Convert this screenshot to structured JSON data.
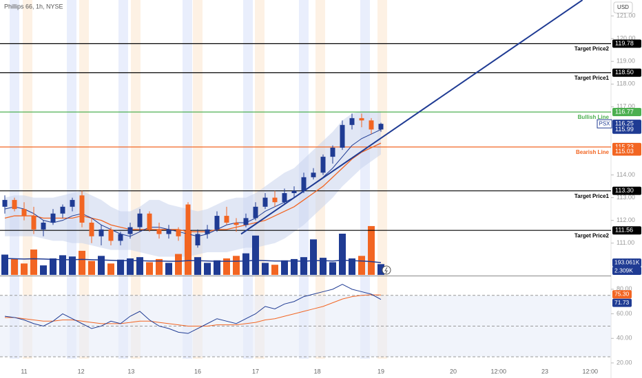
{
  "chart_data": {
    "type": "candlestick",
    "title": "Phillips 66, 1h, NYSE",
    "currency": "USD",
    "symbol": "PSX",
    "up_color": "#1f3b93",
    "down_color": "#f26522",
    "open": [
      112.6,
      112.9,
      112.5,
      112.2,
      111.6,
      111.9,
      112.3,
      112.6,
      113.1,
      111.9,
      111.3,
      111.6,
      111.1,
      111.4,
      111.7,
      112.3,
      111.6,
      111.4,
      111.6,
      112.7,
      110.9,
      111.4,
      111.6,
      112.2,
      111.9,
      111.8,
      112.1,
      112.6,
      113.0,
      112.8,
      113.2,
      113.3,
      113.9,
      114.1,
      114.8,
      115.2,
      116.2,
      116.5,
      116.4,
      116.0
    ],
    "high": [
      113.1,
      113.0,
      112.8,
      112.6,
      112.0,
      112.5,
      112.7,
      113.0,
      113.3,
      112.1,
      111.8,
      111.7,
      111.5,
      111.9,
      112.5,
      112.4,
      111.9,
      111.8,
      111.7,
      112.8,
      111.6,
      111.8,
      112.4,
      112.6,
      112.1,
      112.3,
      112.8,
      113.2,
      113.3,
      113.4,
      113.5,
      114.1,
      114.3,
      114.9,
      115.3,
      116.4,
      116.7,
      116.7,
      116.5,
      116.3
    ],
    "low": [
      112.3,
      112.4,
      112.0,
      111.4,
      111.3,
      111.8,
      112.1,
      112.4,
      111.7,
      111.0,
      110.9,
      110.9,
      110.9,
      111.2,
      111.5,
      111.5,
      111.2,
      111.2,
      111.1,
      110.5,
      110.8,
      111.2,
      111.5,
      111.8,
      111.5,
      111.7,
      112.0,
      112.5,
      112.6,
      112.7,
      113.0,
      113.2,
      113.8,
      114.0,
      114.5,
      115.1,
      116.0,
      116.1,
      115.8,
      115.9
    ],
    "close": [
      112.9,
      112.5,
      112.2,
      111.6,
      111.9,
      112.3,
      112.6,
      112.9,
      111.9,
      111.3,
      111.6,
      111.1,
      111.4,
      111.7,
      112.3,
      111.6,
      111.4,
      111.6,
      111.3,
      110.9,
      111.4,
      111.6,
      112.2,
      111.9,
      111.8,
      112.1,
      112.6,
      113.0,
      112.8,
      113.2,
      113.3,
      113.9,
      114.1,
      114.8,
      115.2,
      116.2,
      116.5,
      116.4,
      116.0,
      116.25
    ],
    "ma_fast": [
      112.5,
      112.6,
      112.5,
      112.3,
      112.0,
      111.9,
      112.0,
      112.2,
      112.3,
      112.1,
      111.8,
      111.6,
      111.4,
      111.3,
      111.5,
      111.7,
      111.7,
      111.6,
      111.5,
      111.4,
      111.3,
      111.4,
      111.6,
      111.8,
      111.9,
      111.9,
      112.1,
      112.4,
      112.6,
      112.8,
      113.0,
      113.3,
      113.6,
      113.9,
      114.3,
      114.8,
      115.3,
      115.6,
      115.8,
      116.0
    ],
    "ma_slow": [
      112.1,
      112.2,
      112.2,
      112.2,
      112.1,
      112.1,
      112.1,
      112.1,
      112.2,
      112.1,
      112.0,
      111.8,
      111.7,
      111.6,
      111.6,
      111.6,
      111.6,
      111.6,
      111.6,
      111.5,
      111.5,
      111.5,
      111.6,
      111.6,
      111.7,
      111.8,
      111.9,
      112.0,
      112.2,
      112.4,
      112.6,
      112.9,
      113.2,
      113.5,
      113.9,
      114.3,
      114.7,
      115.0,
      115.2,
      115.4
    ],
    "band_upper": [
      113.0,
      113.1,
      113.1,
      113.0,
      113.0,
      113.0,
      113.1,
      113.2,
      113.3,
      113.1,
      112.9,
      112.6,
      112.4,
      112.4,
      112.6,
      112.9,
      112.9,
      112.7,
      112.6,
      112.5,
      112.4,
      112.5,
      112.7,
      112.9,
      113.0,
      113.0,
      113.2,
      113.5,
      113.8,
      114.1,
      114.3,
      114.7,
      115.1,
      115.5,
      115.9,
      116.4,
      116.7,
      116.8,
      116.8,
      116.8
    ],
    "band_lower": [
      111.3,
      111.3,
      111.3,
      111.3,
      111.2,
      111.1,
      111.1,
      111.0,
      111.0,
      110.9,
      110.8,
      110.7,
      110.7,
      110.7,
      110.6,
      110.5,
      110.4,
      110.4,
      110.4,
      110.4,
      110.5,
      110.6,
      110.6,
      110.6,
      110.7,
      110.8,
      110.8,
      110.9,
      111.0,
      111.2,
      111.5,
      111.8,
      112.2,
      112.6,
      113.0,
      113.5,
      113.9,
      114.3,
      114.6,
      114.9
    ],
    "ylim": [
      109.6,
      121.7
    ],
    "yticks": [
      {
        "value": 111,
        "label": "111.00"
      },
      {
        "value": 112,
        "label": "112.00"
      },
      {
        "value": 113,
        "label": "113.00"
      },
      {
        "value": 114,
        "label": "114.00"
      },
      {
        "value": 117,
        "label": "117.00"
      },
      {
        "value": 118,
        "label": "118.00"
      },
      {
        "value": 119,
        "label": "119.00"
      },
      {
        "value": 120,
        "label": "120.00"
      },
      {
        "value": 121,
        "label": "121.00"
      }
    ],
    "hlines": [
      {
        "value": 119.78,
        "label": "119.78",
        "name": "Target Price2",
        "color": "#000000"
      },
      {
        "value": 118.5,
        "label": "118.50",
        "name": "Target Price1",
        "color": "#000000"
      },
      {
        "value": 116.77,
        "label": "116.77",
        "name": "Bullish Line",
        "color": "#4caf50"
      },
      {
        "value": 115.23,
        "label": "115.23",
        "name": "Bearish Line",
        "color": "#f26522"
      },
      {
        "value": 113.3,
        "label": "113.30",
        "name": "Target Price1",
        "color": "#000000"
      },
      {
        "value": 111.56,
        "label": "111.56",
        "name": "Target Price2",
        "color": "#000000"
      }
    ],
    "price_tags": [
      {
        "value": 116.25,
        "label": "116.25",
        "color": "#1f3b93"
      },
      {
        "value": 115.99,
        "label": "115.99",
        "color": "#1f3b93"
      },
      {
        "value": 115.03,
        "label": "115.03",
        "color": "#f26522"
      }
    ],
    "trendline": {
      "x": [
        24.5,
        59.9
      ],
      "y": [
        111.4,
        121.7
      ],
      "color": "#1f3b93"
    },
    "volume": [
      320,
      250,
      180,
      400,
      150,
      260,
      310,
      290,
      380,
      220,
      300,
      180,
      240,
      260,
      280,
      200,
      250,
      190,
      330,
      700,
      280,
      190,
      230,
      260,
      300,
      340,
      620,
      190,
      160,
      230,
      250,
      280,
      560,
      270,
      200,
      650,
      260,
      300,
      770,
      170
    ],
    "volume_ma": [
      260,
      255,
      250,
      255,
      250,
      245,
      240,
      240,
      245,
      240,
      235,
      230,
      225,
      225,
      225,
      220,
      220,
      215,
      215,
      225,
      225,
      220,
      215,
      215,
      215,
      220,
      230,
      225,
      220,
      220,
      220,
      215,
      225,
      225,
      220,
      230,
      225,
      220,
      210,
      193.061
    ],
    "volume_ylim": [
      0,
      1300
    ],
    "volume_tags": [
      {
        "value": 193.061,
        "label": "193.061K"
      },
      {
        "value": 2.309,
        "label": "2.309K"
      }
    ],
    "osc": [
      58,
      57,
      55,
      52,
      50,
      54,
      60,
      56,
      52,
      48,
      50,
      54,
      52,
      58,
      62,
      55,
      50,
      48,
      45,
      44,
      48,
      52,
      56,
      54,
      52,
      56,
      60,
      66,
      64,
      68,
      70,
      74,
      76,
      78,
      80,
      84,
      80,
      78,
      76,
      71.73
    ],
    "osc_signal": [
      57,
      57,
      56,
      55,
      54,
      54,
      55,
      55,
      54,
      53,
      52,
      52,
      52,
      53,
      54,
      54,
      53,
      52,
      51,
      50,
      50,
      50,
      51,
      51,
      51,
      52,
      53,
      55,
      56,
      58,
      60,
      62,
      64,
      66,
      69,
      72,
      74,
      75,
      75.5,
      75.3
    ],
    "osc_ylim": [
      10.5,
      90
    ],
    "osc_yticks": [
      {
        "value": 20,
        "label": "20.00"
      },
      {
        "value": 40,
        "label": "40.00"
      },
      {
        "value": 60,
        "label": "60.00"
      },
      {
        "value": 80,
        "label": "80.00"
      }
    ],
    "osc_levels": [
      75,
      50,
      25
    ],
    "osc_tags": [
      {
        "value": 75.3,
        "label": "75.30",
        "color": "#f26522"
      },
      {
        "value": 71.73,
        "label": "71.73",
        "color": "#1f3b93"
      }
    ],
    "x_labels": [
      {
        "index": 2,
        "label": "11"
      },
      {
        "index": 7.9,
        "label": "12"
      },
      {
        "index": 13.1,
        "label": "13"
      },
      {
        "index": 20,
        "label": "16"
      },
      {
        "index": 26,
        "label": "17"
      },
      {
        "index": 32.4,
        "label": "18"
      },
      {
        "index": 39,
        "label": "19"
      },
      {
        "index": 46.5,
        "label": "20"
      },
      {
        "index": 51.2,
        "label": "12:00"
      },
      {
        "index": 56,
        "label": "23"
      },
      {
        "index": 60.7,
        "label": "12:00"
      }
    ]
  }
}
